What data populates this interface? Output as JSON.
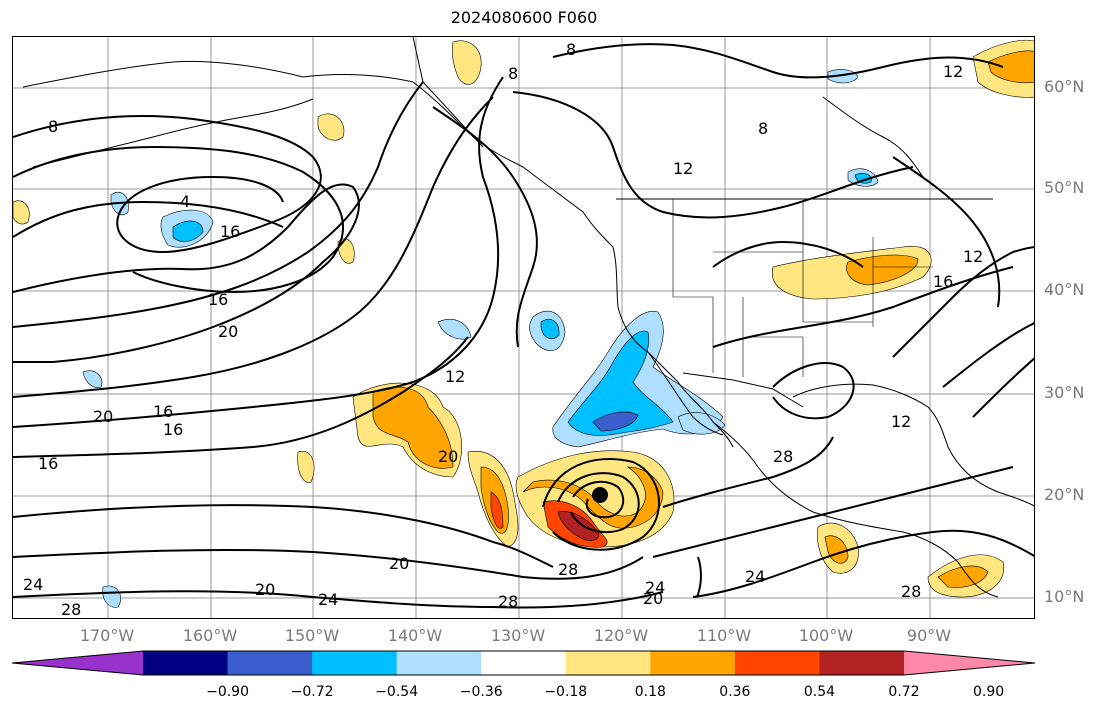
{
  "title": "2024080600 F060",
  "latitudes": [
    {
      "label": "60°N"
    },
    {
      "label": "50°N"
    },
    {
      "label": "40°N"
    },
    {
      "label": "30°N"
    },
    {
      "label": "20°N"
    },
    {
      "label": "10°N"
    }
  ],
  "longitudes": [
    {
      "label": "170°W"
    },
    {
      "label": "160°W"
    },
    {
      "label": "150°W"
    },
    {
      "label": "140°W"
    },
    {
      "label": "130°W"
    },
    {
      "label": "120°W"
    },
    {
      "label": "110°W"
    },
    {
      "label": "100°W"
    },
    {
      "label": "90°W"
    }
  ],
  "colorbar": {
    "ticks": [
      "−0.90",
      "−0.72",
      "−0.54",
      "−0.36",
      "−0.18",
      "0.18",
      "0.36",
      "0.54",
      "0.72",
      "0.90"
    ],
    "colors": [
      "#9932cc",
      "#000080",
      "#3a5fcd",
      "#00bfff",
      "#aedfff",
      "#ffffff",
      "#ffe680",
      "#ffa500",
      "#ff4500",
      "#b22222",
      "#ff88aa"
    ]
  },
  "contour_labels": [
    "8",
    "8",
    "8",
    "8",
    "12",
    "12",
    "12",
    "4",
    "16",
    "16",
    "16",
    "16",
    "16",
    "16",
    "20",
    "20",
    "20",
    "20",
    "20",
    "20",
    "24",
    "24",
    "24",
    "24",
    "28",
    "28",
    "28",
    "28",
    "28",
    "12",
    "12"
  ],
  "storm_marker": "tropical-cyclone-center"
}
